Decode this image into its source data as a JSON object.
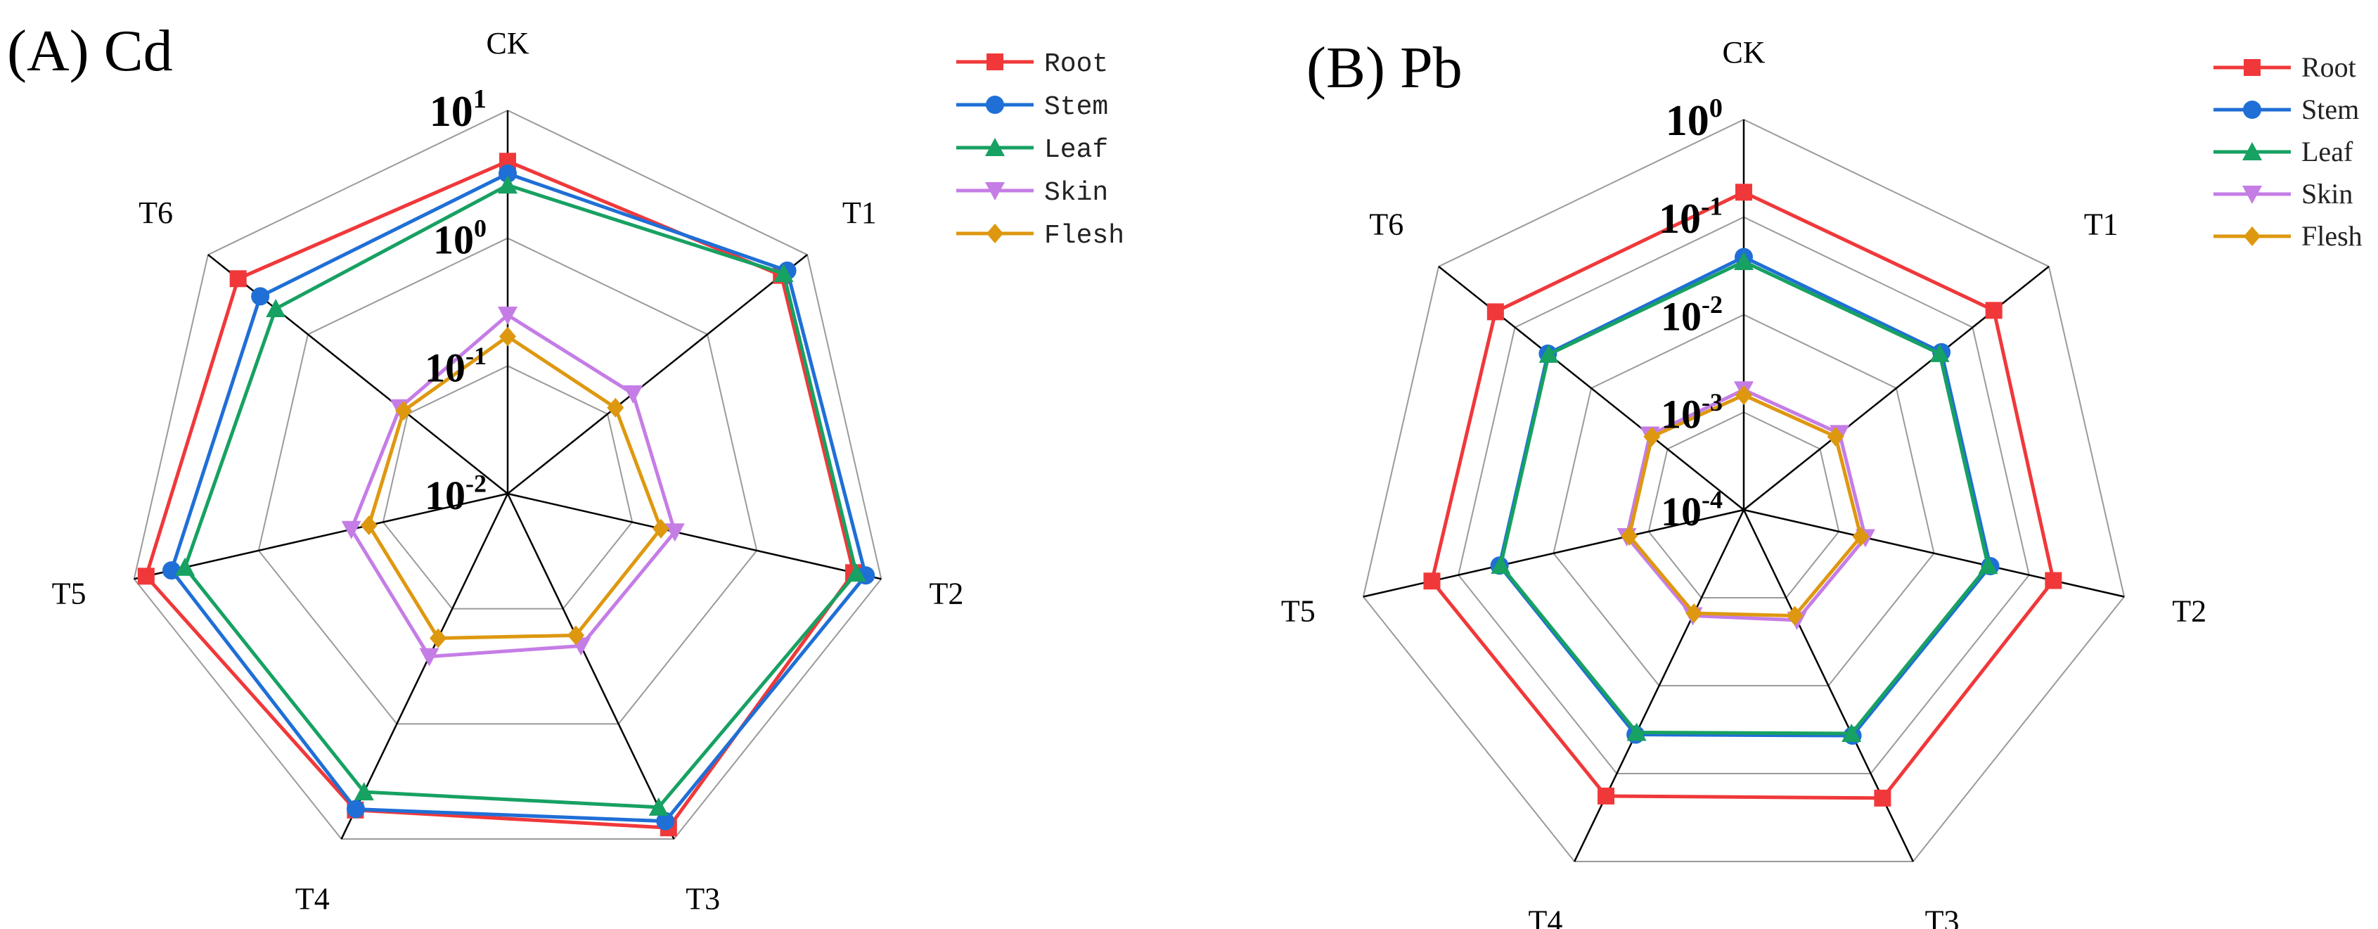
{
  "chart_data": [
    {
      "type": "radar",
      "title": "(A) Cd",
      "scale": "log10",
      "categories": [
        "CK",
        "T1",
        "T2",
        "T3",
        "T4",
        "T5",
        "T6"
      ],
      "rlim": [
        0.01,
        10
      ],
      "ticks": [
        {
          "base": "10",
          "exp": "-2"
        },
        {
          "base": "10",
          "exp": "-1"
        },
        {
          "base": "10",
          "exp": "0"
        },
        {
          "base": "10",
          "exp": "1"
        }
      ],
      "series": [
        {
          "name": "Root",
          "color": "#f0383a",
          "marker": "square",
          "values": [
            4.0,
            5.5,
            6.0,
            8.0,
            5.6,
            8.0,
            5.0
          ]
        },
        {
          "name": "Stem",
          "color": "#1f6fd6",
          "marker": "circle",
          "values": [
            3.2,
            6.3,
            7.5,
            7.0,
            5.5,
            5.0,
            3.0
          ]
        },
        {
          "name": "Leaf",
          "color": "#17a162",
          "marker": "triangle-up",
          "values": [
            2.6,
            5.8,
            6.3,
            5.3,
            3.9,
            3.9,
            2.1
          ]
        },
        {
          "name": "Skin",
          "color": "#c57de6",
          "marker": "triangle-down",
          "values": [
            0.25,
            0.18,
            0.22,
            0.21,
            0.26,
            0.18,
            0.12
          ]
        },
        {
          "name": "Flesh",
          "color": "#de9810",
          "marker": "diamond",
          "values": [
            0.17,
            0.12,
            0.17,
            0.17,
            0.18,
            0.13,
            0.11
          ]
        }
      ]
    },
    {
      "type": "radar",
      "title": "(B) Pb",
      "scale": "log10",
      "categories": [
        "CK",
        "T1",
        "T2",
        "T3",
        "T4",
        "T5",
        "T6"
      ],
      "rlim": [
        0.0001,
        1
      ],
      "ticks": [
        {
          "base": "10",
          "exp": "-4"
        },
        {
          "base": "10",
          "exp": "-3"
        },
        {
          "base": "10",
          "exp": "-2"
        },
        {
          "base": "10",
          "exp": "-1"
        },
        {
          "base": "10",
          "exp": "0"
        }
      ],
      "series": [
        {
          "name": "Root",
          "color": "#f0383a",
          "marker": "square",
          "values": [
            0.18,
            0.19,
            0.18,
            0.19,
            0.18,
            0.19,
            0.18
          ]
        },
        {
          "name": "Stem",
          "color": "#1f6fd6",
          "marker": "circle",
          "values": [
            0.039,
            0.039,
            0.039,
            0.037,
            0.036,
            0.037,
            0.037
          ]
        },
        {
          "name": "Leaf",
          "color": "#17a162",
          "marker": "triangle-up",
          "values": [
            0.035,
            0.037,
            0.037,
            0.035,
            0.034,
            0.036,
            0.036
          ]
        },
        {
          "name": "Skin",
          "color": "#c57de6",
          "marker": "triangle-down",
          "values": [
            0.0017,
            0.0018,
            0.0019,
            0.0018,
            0.0016,
            0.0017,
            0.0017
          ]
        },
        {
          "name": "Flesh",
          "color": "#de9810",
          "marker": "diamond",
          "values": [
            0.0015,
            0.0016,
            0.0017,
            0.0016,
            0.0015,
            0.0016,
            0.0016
          ]
        }
      ]
    }
  ]
}
